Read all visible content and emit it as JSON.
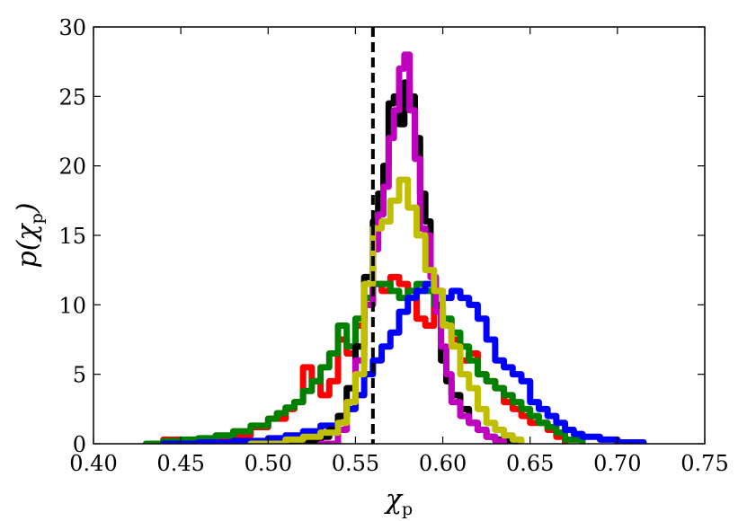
{
  "chart_data": {
    "type": "line",
    "xlabel": "χp",
    "ylabel": "p(χp)",
    "xlabel_main": "χ",
    "xlabel_sub": "p",
    "ylabel_prefix": "p(",
    "ylabel_main": "χ",
    "ylabel_sub": "p",
    "ylabel_suffix": ")",
    "xlim": [
      0.4,
      0.75
    ],
    "ylim": [
      0,
      30
    ],
    "xticks": [
      0.4,
      0.45,
      0.5,
      0.55,
      0.6,
      0.65,
      0.7,
      0.75
    ],
    "yticks": [
      0,
      5,
      10,
      15,
      20,
      25,
      30
    ],
    "xtick_labels": [
      "0.40",
      "0.45",
      "0.50",
      "0.55",
      "0.60",
      "0.65",
      "0.70",
      "0.75"
    ],
    "ytick_labels": [
      "0",
      "5",
      "10",
      "15",
      "20",
      "25",
      "30"
    ],
    "grid": false,
    "reference_line": {
      "x": 0.56,
      "style": "dashed",
      "color": "#000000"
    },
    "series": [
      {
        "color": "#ff0000",
        "x": [
          0.435,
          0.44,
          0.45,
          0.46,
          0.47,
          0.48,
          0.49,
          0.5,
          0.51,
          0.515,
          0.52,
          0.525,
          0.53,
          0.535,
          0.54,
          0.545,
          0.55,
          0.555,
          0.56,
          0.565,
          0.57,
          0.575,
          0.58,
          0.585,
          0.59,
          0.595,
          0.6,
          0.605,
          0.61,
          0.615,
          0.62,
          0.625,
          0.63,
          0.635,
          0.64,
          0.645,
          0.65,
          0.655,
          0.66,
          0.665,
          0.67
        ],
        "y": [
          0,
          0.3,
          0.2,
          0.3,
          0.5,
          0.6,
          1.2,
          1.8,
          2.5,
          3.0,
          5.5,
          4.5,
          3.5,
          4.5,
          7.5,
          6.5,
          8.5,
          10.0,
          11.5,
          11.0,
          12.0,
          11.5,
          11.0,
          9.0,
          8.5,
          10.0,
          8.5,
          7.5,
          6.0,
          6.5,
          5.0,
          4.5,
          4.0,
          3.0,
          2.5,
          2.0,
          1.5,
          1.5,
          1.0,
          0.5,
          0
        ]
      },
      {
        "color": "#008000",
        "x": [
          0.43,
          0.44,
          0.45,
          0.46,
          0.47,
          0.48,
          0.49,
          0.5,
          0.505,
          0.51,
          0.515,
          0.52,
          0.525,
          0.53,
          0.535,
          0.54,
          0.545,
          0.55,
          0.555,
          0.56,
          0.565,
          0.57,
          0.575,
          0.58,
          0.585,
          0.59,
          0.595,
          0.6,
          0.605,
          0.61,
          0.615,
          0.62,
          0.625,
          0.63,
          0.635,
          0.64,
          0.645,
          0.65,
          0.655,
          0.66,
          0.665,
          0.67,
          0.68
        ],
        "y": [
          0,
          0.2,
          0.3,
          0.4,
          0.6,
          0.9,
          1.3,
          1.8,
          2.2,
          2.6,
          3.0,
          3.8,
          4.5,
          5.5,
          6.5,
          8.5,
          7.0,
          9.0,
          10.5,
          11.5,
          11.5,
          11.0,
          10.5,
          11.0,
          11.5,
          11.0,
          10.0,
          9.0,
          8.0,
          7.0,
          6.0,
          5.0,
          4.5,
          4.0,
          3.5,
          3.0,
          2.5,
          2.0,
          1.5,
          1.2,
          0.8,
          0.3,
          0
        ]
      },
      {
        "color": "#0000ff",
        "x": [
          0.44,
          0.46,
          0.48,
          0.5,
          0.51,
          0.52,
          0.53,
          0.54,
          0.545,
          0.55,
          0.555,
          0.56,
          0.565,
          0.57,
          0.575,
          0.58,
          0.585,
          0.59,
          0.595,
          0.6,
          0.605,
          0.61,
          0.615,
          0.62,
          0.625,
          0.63,
          0.635,
          0.64,
          0.645,
          0.65,
          0.655,
          0.66,
          0.665,
          0.67,
          0.675,
          0.68,
          0.69,
          0.7,
          0.715
        ],
        "y": [
          0,
          0.1,
          0.2,
          0.4,
          0.6,
          0.9,
          1.3,
          2.0,
          2.5,
          3.5,
          5.0,
          6.0,
          7.0,
          8.0,
          9.5,
          10.5,
          11.0,
          11.5,
          11.0,
          10.5,
          11.0,
          10.5,
          10.0,
          9.0,
          7.5,
          6.0,
          5.5,
          5.0,
          4.5,
          3.0,
          2.5,
          2.0,
          1.5,
          1.0,
          0.7,
          0.5,
          0.3,
          0.1,
          0
        ]
      },
      {
        "color": "#000000",
        "x": [
          0.5,
          0.52,
          0.53,
          0.535,
          0.54,
          0.545,
          0.55,
          0.555,
          0.56,
          0.563,
          0.566,
          0.569,
          0.572,
          0.575,
          0.578,
          0.581,
          0.584,
          0.587,
          0.59,
          0.593,
          0.596,
          0.599,
          0.602,
          0.605,
          0.61,
          0.615,
          0.62,
          0.625,
          0.63,
          0.635,
          0.64,
          0.645
        ],
        "y": [
          0,
          0.2,
          0.5,
          1.0,
          2.0,
          4.0,
          7.0,
          12.0,
          16.0,
          18.0,
          20.0,
          24.5,
          25.0,
          23.0,
          26.0,
          25.0,
          22.0,
          18.0,
          16.0,
          12.0,
          10.0,
          6.0,
          4.5,
          3.5,
          2.5,
          1.5,
          1.0,
          0.5,
          0.3,
          0.2,
          0.1,
          0
        ]
      },
      {
        "color": "#bf00bf",
        "x": [
          0.53,
          0.54,
          0.545,
          0.55,
          0.555,
          0.56,
          0.563,
          0.566,
          0.569,
          0.572,
          0.575,
          0.578,
          0.581,
          0.584,
          0.587,
          0.59,
          0.593,
          0.596,
          0.599,
          0.602,
          0.605,
          0.61,
          0.615,
          0.62,
          0.625,
          0.63,
          0.635
        ],
        "y": [
          0,
          1.0,
          3.0,
          6.0,
          10.0,
          14.0,
          16.5,
          18.5,
          22.0,
          24.0,
          27.0,
          28.0,
          24.0,
          20.5,
          15.5,
          15.0,
          12.0,
          9.5,
          7.0,
          5.0,
          3.0,
          2.0,
          1.5,
          1.0,
          0.5,
          0.2,
          0
        ]
      },
      {
        "color": "#bfbf00",
        "x": [
          0.49,
          0.51,
          0.52,
          0.53,
          0.54,
          0.545,
          0.55,
          0.555,
          0.56,
          0.565,
          0.57,
          0.575,
          0.58,
          0.585,
          0.59,
          0.595,
          0.6,
          0.605,
          0.61,
          0.615,
          0.62,
          0.625,
          0.63,
          0.635,
          0.64,
          0.645
        ],
        "y": [
          0,
          0.3,
          0.5,
          0.8,
          1.5,
          3.0,
          5.0,
          11.5,
          15.5,
          16.0,
          17.5,
          19.0,
          17.0,
          15.0,
          12.5,
          11.0,
          8.5,
          7.0,
          5.0,
          4.0,
          2.5,
          1.5,
          1.0,
          0.6,
          0.3,
          0
        ]
      }
    ]
  }
}
